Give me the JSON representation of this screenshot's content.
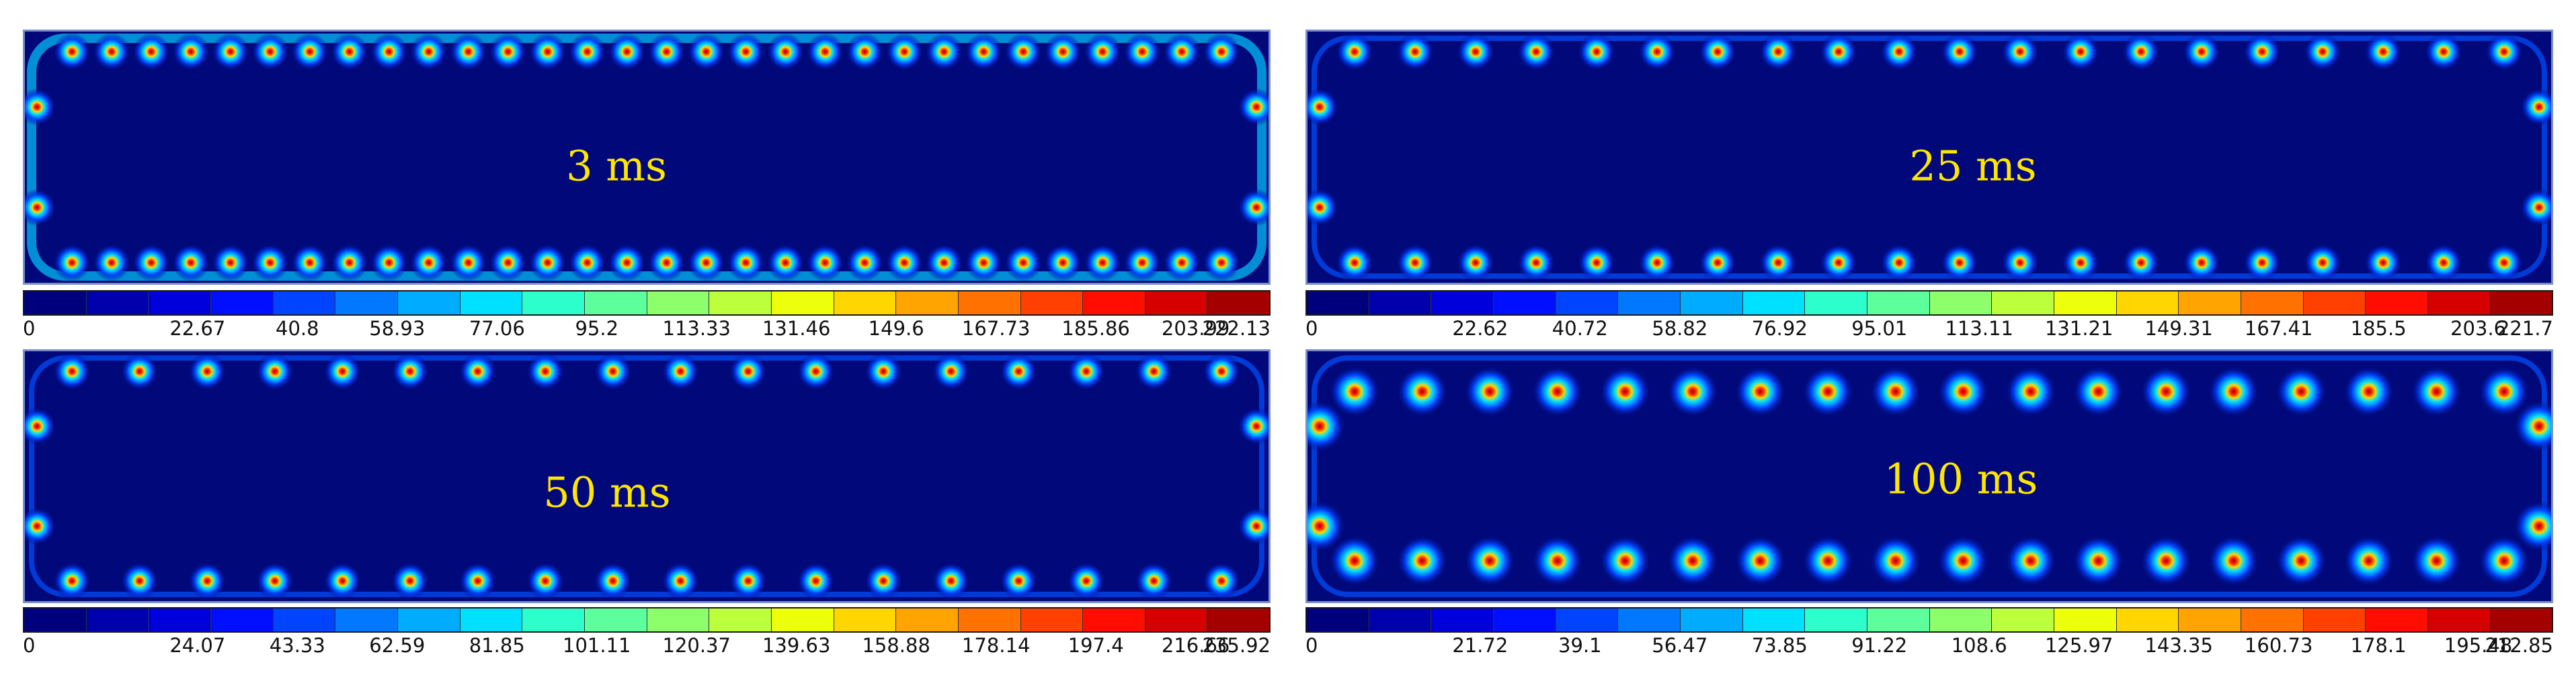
{
  "colormap": [
    "#00007f",
    "#0000ad",
    "#0000dc",
    "#0010ff",
    "#0044ff",
    "#0078ff",
    "#00acff",
    "#00e0ff",
    "#2cffcb",
    "#5cff9b",
    "#8cff6b",
    "#bcff3b",
    "#ecff0b",
    "#ffd600",
    "#ffa400",
    "#ff7200",
    "#ff4000",
    "#ff0e00",
    "#d60000",
    "#a40000"
  ],
  "panels": [
    {
      "id": "3ms",
      "time": "3 ms",
      "ticks": [
        "0",
        "22.67",
        "40.8",
        "58.93",
        "77.06",
        "95.2",
        "113.33",
        "131.46",
        "149.6",
        "167.73",
        "185.86",
        "203.99",
        "222.13"
      ]
    },
    {
      "id": "25ms",
      "time": "25 ms",
      "ticks": [
        "0",
        "22.62",
        "40.72",
        "58.82",
        "76.92",
        "95.01",
        "113.11",
        "131.21",
        "149.31",
        "167.41",
        "185.5",
        "203.6",
        "221.7"
      ]
    },
    {
      "id": "50ms",
      "time": "50 ms",
      "ticks": [
        "0",
        "24.07",
        "43.33",
        "62.59",
        "81.85",
        "101.11",
        "120.37",
        "139.63",
        "158.88",
        "178.14",
        "197.4",
        "216.66",
        "235.92"
      ]
    },
    {
      "id": "100ms",
      "time": "100 ms",
      "ticks": [
        "0",
        "21.72",
        "39.1",
        "56.47",
        "73.85",
        "91.22",
        "108.6",
        "125.97",
        "143.35",
        "160.73",
        "178.1",
        "195.48",
        "212.85"
      ]
    }
  ]
}
